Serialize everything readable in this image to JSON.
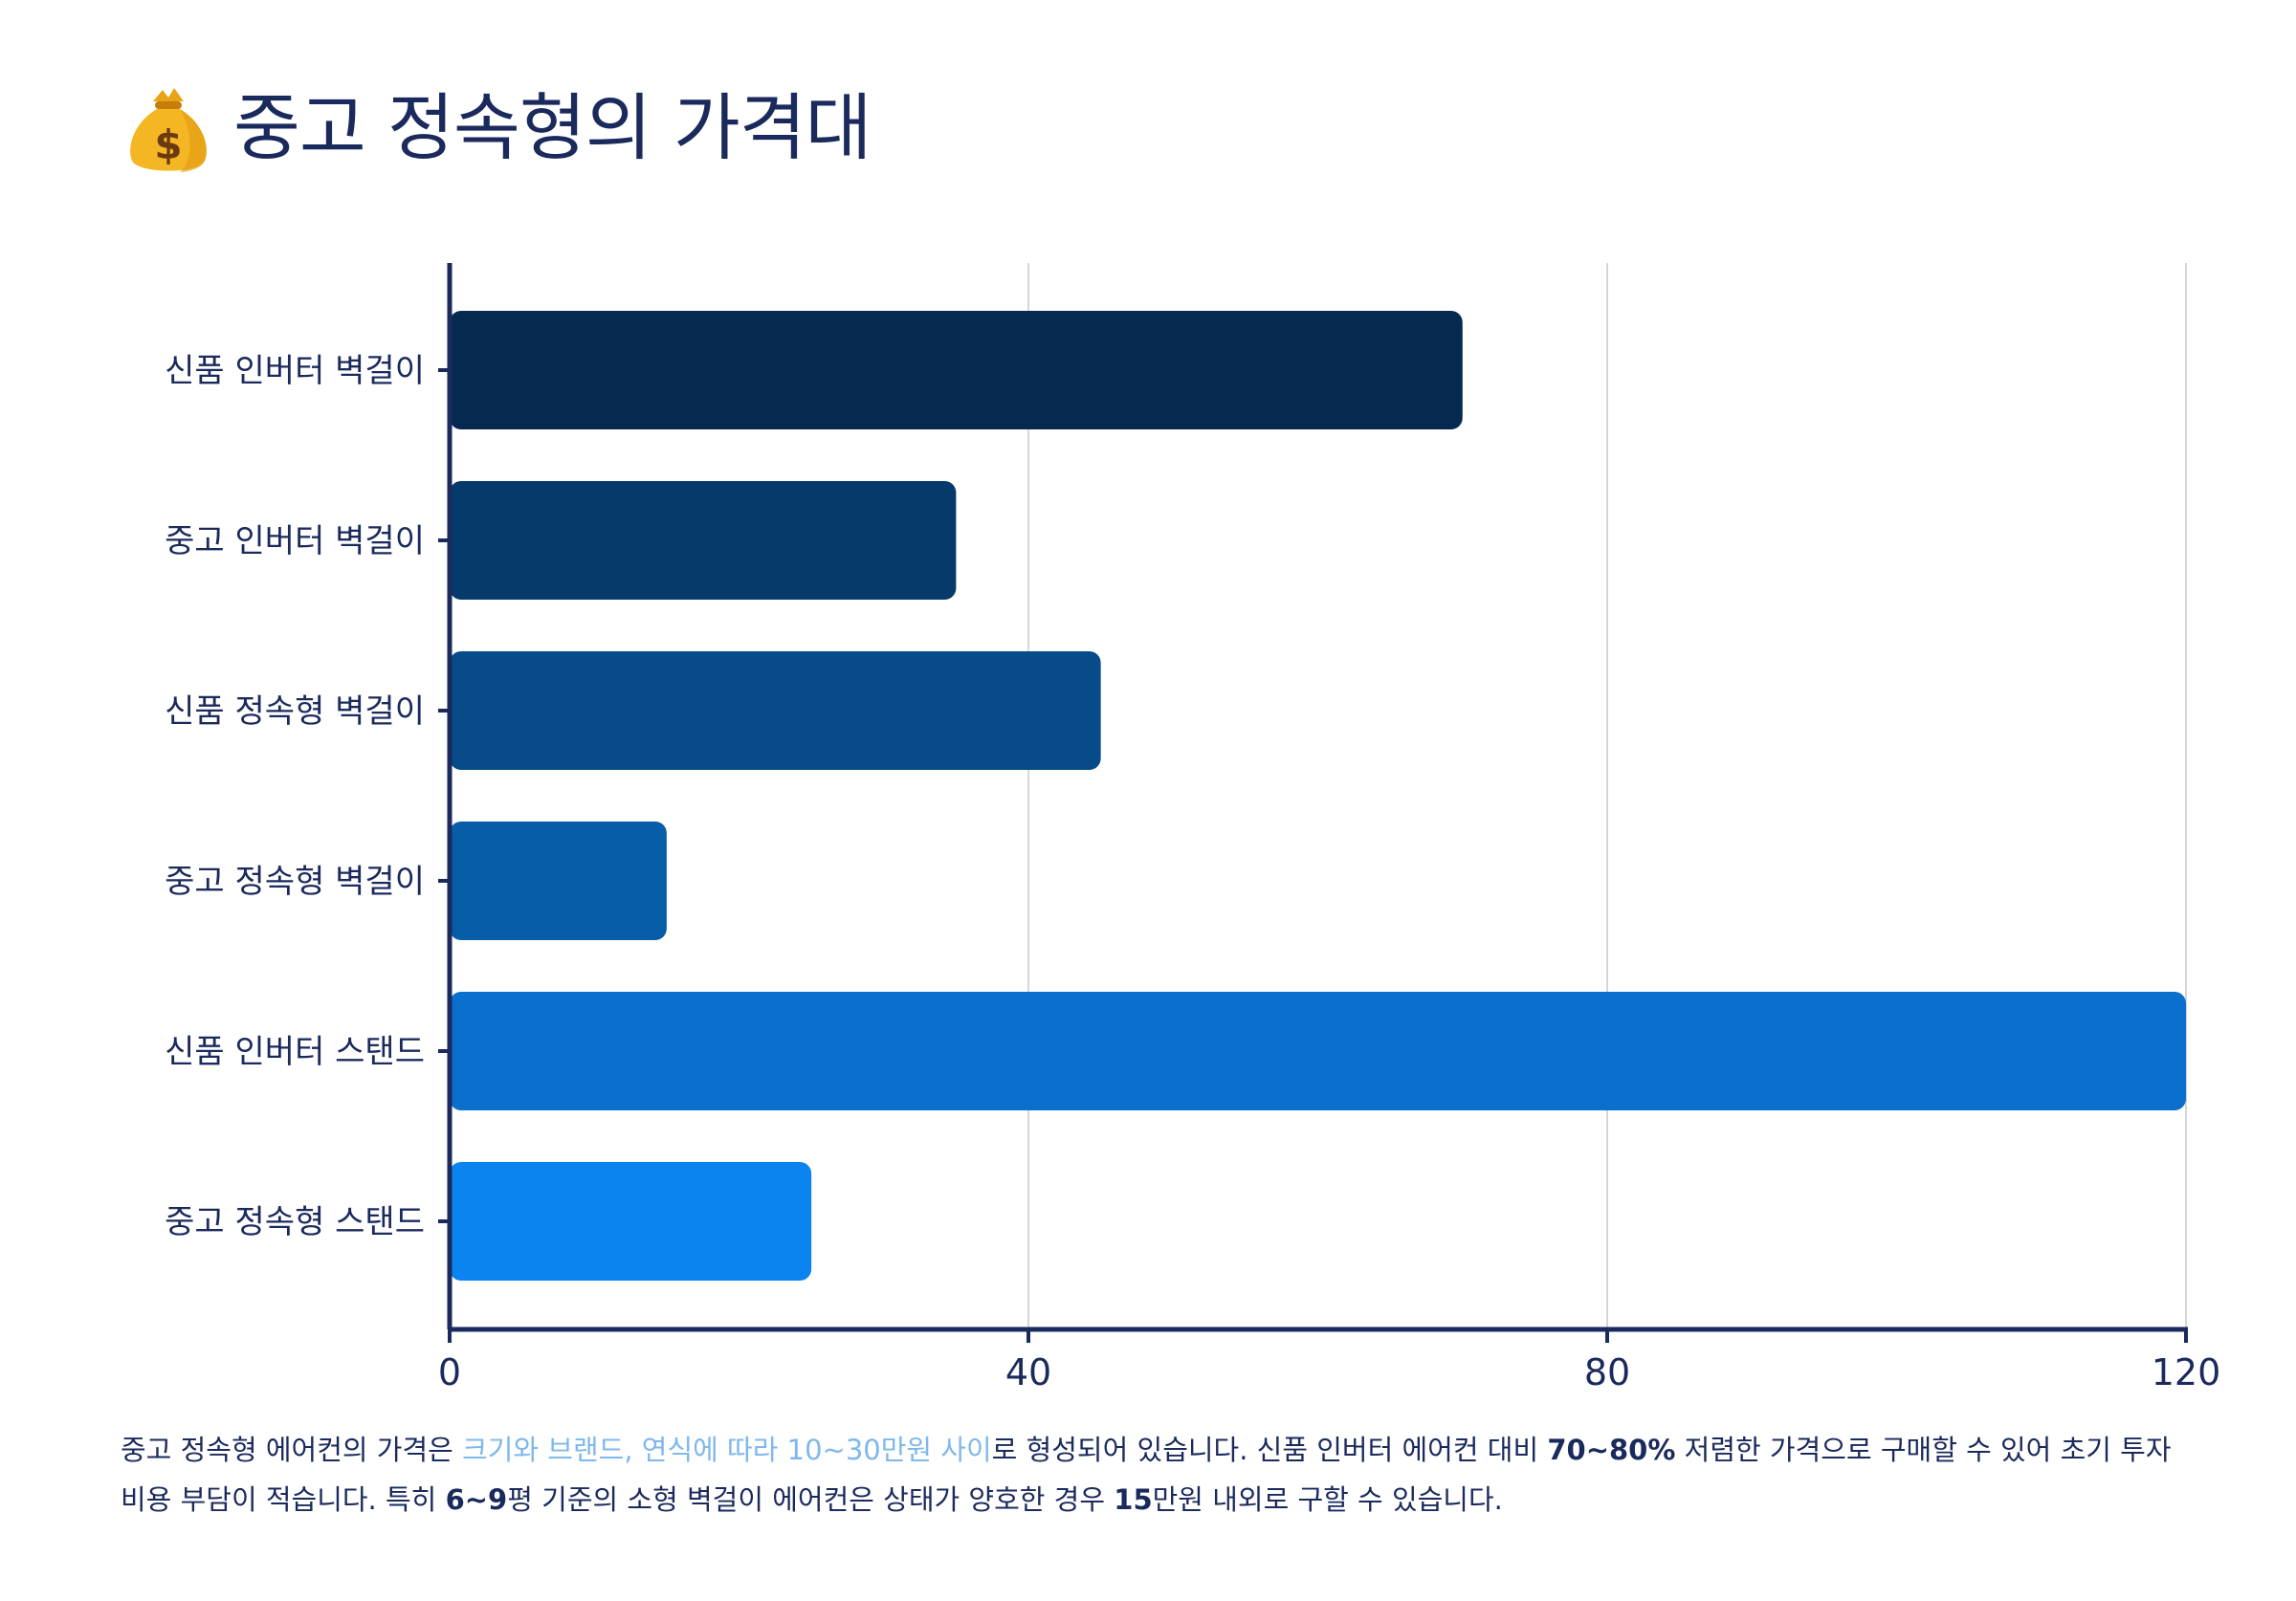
{
  "title": {
    "icon": "money-bag-icon",
    "text": "중고 정속형의 가격대"
  },
  "chart_data": {
    "type": "bar",
    "orientation": "horizontal",
    "title": "중고 정속형의 가격대",
    "categories": [
      "신품 인버터 벽걸이",
      "중고 인버터 벽걸이",
      "신품 정속형 벽걸이",
      "중고 정속형 벽걸이",
      "신품 인버터 스탠드",
      "중고 정속형 스탠드"
    ],
    "values": [
      70,
      35,
      45,
      15,
      120,
      25
    ],
    "colors": [
      "#062a4f",
      "#063a6b",
      "#074b88",
      "#085da8",
      "#0b6fce",
      "#0b84ef"
    ],
    "xlim": [
      0,
      120
    ],
    "xticks": [
      0,
      40,
      80,
      120
    ],
    "xtick_labels": [
      "0",
      "40",
      "80",
      "120"
    ],
    "grid": true,
    "xlabel": "",
    "ylabel": ""
  },
  "caption": {
    "part1": "중고 정속형 에어컨의 가격은 ",
    "highlight": "크기와 브랜드, 연식에 따라 10~30만원 사이",
    "part2": "로 형성되어 있습니다. 신품 인버터 에어컨 대비 ",
    "emph1": "70~80%",
    "part3": " 저렴한 가격으로 구매할 수 있어 초기 투자 비용 부담이 적습니다. 특히 ",
    "emph2": "6~9",
    "part4": "평 기준의 소형 벽걸이 에어컨은 상태가 양호한 경우 ",
    "emph3": "15",
    "part5": "만원 내외로 구할 수 있습니다."
  }
}
